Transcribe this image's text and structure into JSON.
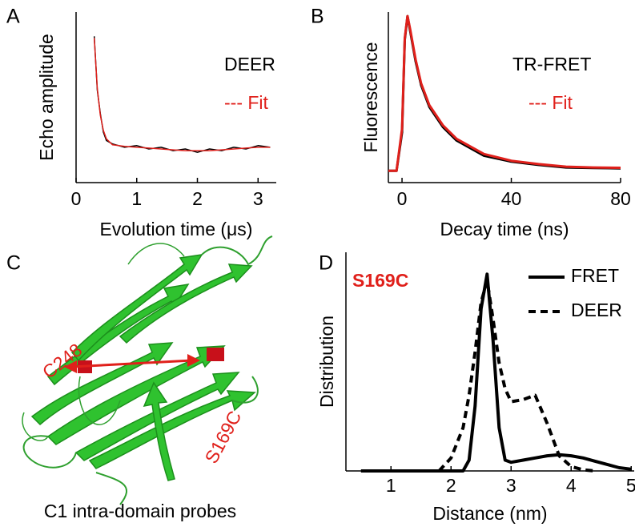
{
  "chart_data": [
    {
      "panel": "A",
      "type": "line",
      "xlabel": "Evolution time (μs)",
      "ylabel": "Echo amplitude",
      "x": [
        0.3,
        0.35,
        0.4,
        0.45,
        0.5,
        0.6,
        0.8,
        1.0,
        1.2,
        1.4,
        1.6,
        1.8,
        2.0,
        2.2,
        2.4,
        2.6,
        2.8,
        3.0,
        3.2
      ],
      "series": [
        {
          "name": "DEER",
          "color": "#000000",
          "values": [
            0.87,
            0.55,
            0.41,
            0.3,
            0.25,
            0.23,
            0.21,
            0.22,
            0.2,
            0.21,
            0.19,
            0.2,
            0.18,
            0.2,
            0.19,
            0.21,
            0.2,
            0.22,
            0.21
          ]
        },
        {
          "name": "--- Fit",
          "color": "#e0201b",
          "values": [
            0.86,
            0.56,
            0.4,
            0.31,
            0.26,
            0.225,
            0.215,
            0.21,
            0.205,
            0.2,
            0.195,
            0.19,
            0.19,
            0.19,
            0.195,
            0.2,
            0.205,
            0.21,
            0.21
          ]
        }
      ],
      "xlim": [
        0,
        3.3
      ],
      "ylim": [
        0,
        1
      ],
      "xticks": [
        0,
        1,
        2,
        3
      ],
      "legend": "upper right",
      "legend_marker": "text"
    },
    {
      "panel": "B",
      "type": "line",
      "xlabel": "Decay time (ns)",
      "ylabel": "Fluorescence",
      "x": [
        -5,
        -2,
        0,
        1,
        2,
        3,
        5,
        7,
        10,
        15,
        20,
        30,
        40,
        50,
        60,
        70,
        80
      ],
      "series": [
        {
          "name": "TR-FRET",
          "color": "#000000",
          "values": [
            0.07,
            0.07,
            0.3,
            0.85,
            0.99,
            0.9,
            0.72,
            0.58,
            0.45,
            0.33,
            0.25,
            0.16,
            0.125,
            0.105,
            0.09,
            0.087,
            0.085
          ]
        },
        {
          "name": "--- Fit",
          "color": "#e0201b",
          "values": [
            0.07,
            0.07,
            0.32,
            0.86,
            0.99,
            0.91,
            0.73,
            0.59,
            0.46,
            0.34,
            0.26,
            0.17,
            0.13,
            0.11,
            0.095,
            0.09,
            0.088
          ]
        }
      ],
      "xlim": [
        -5,
        80
      ],
      "ylim": [
        0,
        1
      ],
      "xticks": [
        0,
        40,
        80
      ],
      "legend": "upper right",
      "legend_marker": "text"
    },
    {
      "panel": "D",
      "type": "line",
      "xlabel": "Distance (nm)",
      "ylabel": "Distribution",
      "annotation": "S169C",
      "x": [
        0.5,
        1.0,
        1.5,
        1.8,
        2.0,
        2.2,
        2.3,
        2.4,
        2.5,
        2.6,
        2.7,
        2.8,
        2.9,
        3.0,
        3.2,
        3.4,
        3.6,
        3.8,
        4.0,
        4.2,
        4.4,
        4.6,
        4.8,
        5.0
      ],
      "series": [
        {
          "name": "FRET",
          "color": "#000000",
          "dash": false,
          "values": [
            0,
            0,
            0,
            0,
            0,
            0,
            0.05,
            0.3,
            0.75,
            0.91,
            0.6,
            0.2,
            0.05,
            0.04,
            0.05,
            0.06,
            0.07,
            0.075,
            0.07,
            0.06,
            0.045,
            0.03,
            0.015,
            0.008
          ]
        },
        {
          "name": "DEER",
          "color": "#000000",
          "dash": true,
          "values": [
            null,
            null,
            null,
            0,
            0.06,
            0.2,
            0.35,
            0.55,
            0.78,
            0.88,
            0.7,
            0.5,
            0.38,
            0.32,
            0.33,
            0.35,
            0.22,
            0.07,
            0.02,
            0.005,
            0,
            null,
            null,
            null
          ]
        }
      ],
      "xlim": [
        0.25,
        5.05
      ],
      "ylim": [
        0,
        1
      ],
      "xticks": [
        1,
        2,
        3,
        4,
        5
      ],
      "legend": "upper right",
      "legend_marker": "line"
    }
  ],
  "illustration": {
    "panel": "C",
    "labels": [
      "C248",
      "S169C"
    ],
    "caption": "C1 intra-domain probes"
  }
}
